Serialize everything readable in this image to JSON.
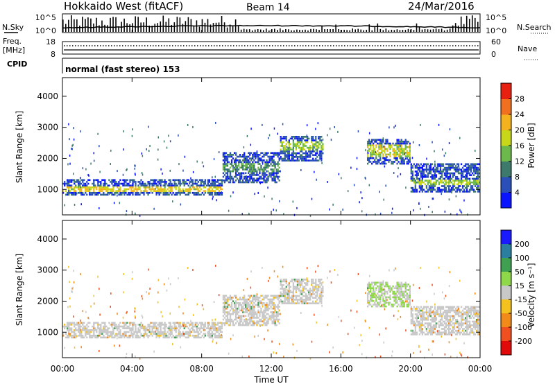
{
  "header": {
    "station": "Hokkaido West (fitACF)",
    "beam": "Beam 14",
    "date": "24/Mar/2016"
  },
  "strip": {
    "left_top_ticks": [
      "10^5",
      "10^0"
    ],
    "right_top_ticks": [
      "10^5",
      "10^0"
    ],
    "n_sky_label": "N.Sky",
    "n_search_label": "N.Search",
    "freq_label_line1": "Freq.",
    "freq_label_line2": "[MHz]",
    "freq_ticks": [
      "18",
      "8"
    ],
    "nave_label": "Nave",
    "nave_ticks": [
      "60",
      "0"
    ],
    "cpid_label": "CPID",
    "cpid_text": "normal (fast stereo) 153"
  },
  "chart_data": [
    {
      "type": "heatmap",
      "quantity": "Power",
      "ylabel": "Slant Range [km]",
      "ylim": [
        180,
        4600
      ],
      "yticks": [
        "1000",
        "2000",
        "3000",
        "4000"
      ],
      "xlim_hours": [
        0,
        24
      ],
      "colorbar": {
        "label": "Power [dB]",
        "ticks": [
          "4",
          "8",
          "12",
          "16",
          "20",
          "24",
          "28"
        ],
        "range": [
          0,
          32
        ],
        "colors": [
          "#0a14ff",
          "#2a4fb8",
          "#3e7a6c",
          "#6cb84c",
          "#c8d818",
          "#f4b21e",
          "#f07020",
          "#e82010"
        ]
      },
      "bands": [
        {
          "t0": 0.0,
          "t1": 9.2,
          "lo": 800,
          "hi": 1300,
          "core": [
            900,
            1050
          ],
          "core_level": 18
        },
        {
          "t0": 9.2,
          "t1": 12.5,
          "lo": 1200,
          "hi": 2200,
          "core": [
            1500,
            1800
          ],
          "core_level": 10
        },
        {
          "t0": 12.5,
          "t1": 15.0,
          "lo": 1900,
          "hi": 2700,
          "core": [
            2200,
            2500
          ],
          "core_level": 14
        },
        {
          "t0": 17.5,
          "t1": 20.0,
          "lo": 1800,
          "hi": 2600,
          "core": [
            2000,
            2400
          ],
          "core_level": 16
        },
        {
          "t0": 20.0,
          "t1": 24.0,
          "lo": 900,
          "hi": 1800,
          "core": [
            1100,
            1300
          ],
          "core_level": 14
        }
      ]
    },
    {
      "type": "heatmap",
      "quantity": "Velocity",
      "xlabel": "Time UT",
      "ylabel": "Slant Range [km]",
      "ylim": [
        180,
        4600
      ],
      "yticks": [
        "1000",
        "2000",
        "3000",
        "4000"
      ],
      "xticks": [
        "00:00",
        "04:00",
        "08:00",
        "12:00",
        "16:00",
        "20:00",
        "00:00"
      ],
      "xlim_hours": [
        0,
        24
      ],
      "colorbar": {
        "label": "Velocity [m s⁻¹]",
        "ticks": [
          "200",
          "100",
          "50",
          "15",
          "-15",
          "-50",
          "-100",
          "-200"
        ],
        "colors": [
          "#1a1aff",
          "#2a7fa0",
          "#3ea050",
          "#8ed84a",
          "#c8c8c8",
          "#f4c21e",
          "#f28a1a",
          "#f05020",
          "#e00a0a"
        ]
      }
    }
  ]
}
